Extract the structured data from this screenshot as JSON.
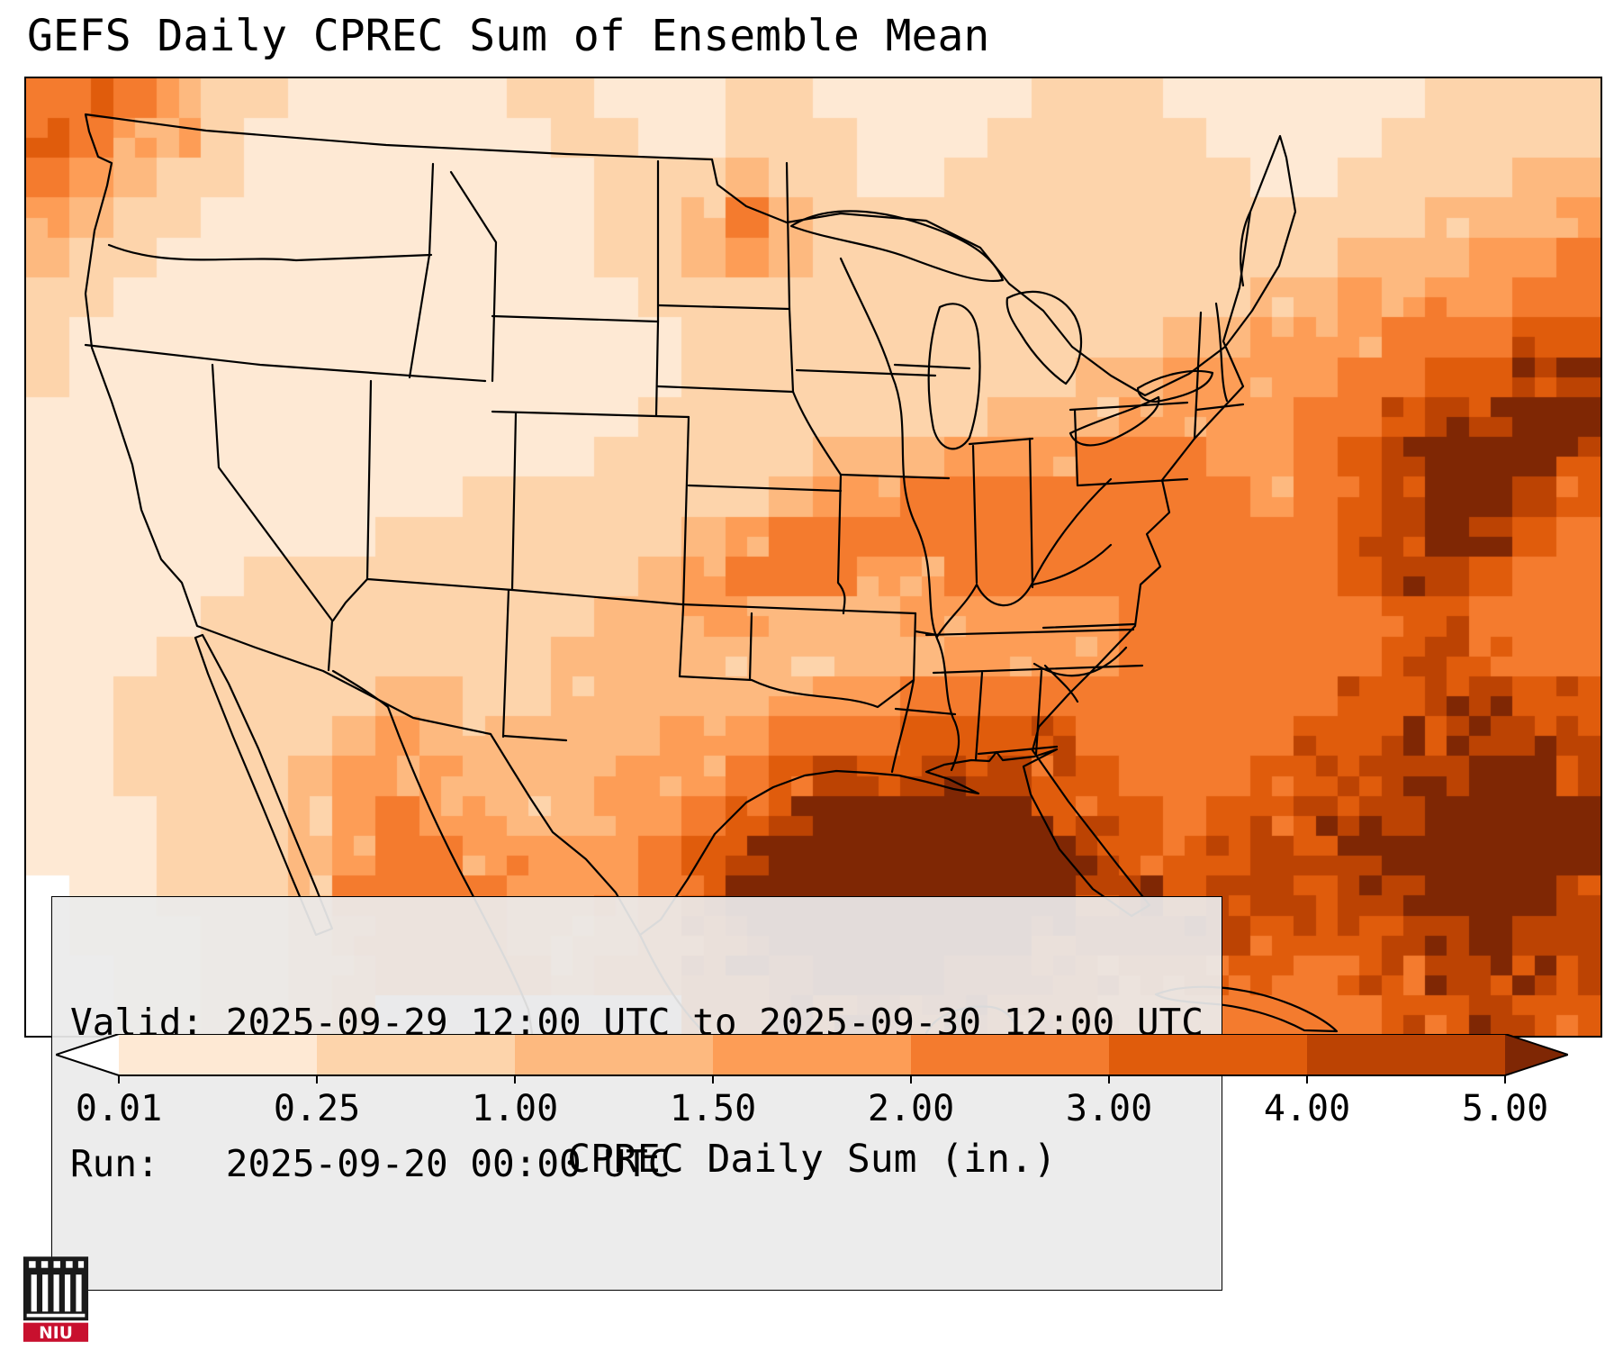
{
  "title": "GEFS Daily CPREC Sum of Ensemble Mean",
  "info_box": {
    "valid_line": "Valid: 2025-09-29 12:00 UTC to 2025-09-30 12:00 UTC",
    "run_line": "Run:   2025-09-20 00:00 UTC"
  },
  "colorbar": {
    "label": "CPREC Daily Sum (in.)",
    "ticks": [
      "0.01",
      "0.25",
      "1.00",
      "1.50",
      "2.00",
      "3.00",
      "4.00",
      "5.00"
    ],
    "segment_colors": [
      "#fee9d4",
      "#fdd4ab",
      "#fdb97f",
      "#fd9d56",
      "#f47b2e",
      "#e05c0c",
      "#bc4303"
    ],
    "under_color": "#ffffff",
    "over_color": "#7f2704",
    "outline_color": "#000000"
  },
  "logo": {
    "name": "NIU",
    "text": "NIU",
    "banner_color": "#c8102e",
    "shield_color": "#1a1a1a"
  },
  "chart_data": {
    "type": "heatmap",
    "title": "GEFS Daily CPREC Sum of Ensemble Mean",
    "variable": "CPREC Daily Sum",
    "units": "in.",
    "region": "Continental United States with state boundaries",
    "valid": "2025-09-29 12:00 UTC to 2025-09-30 12:00 UTC",
    "run": "2025-09-20 00:00 UTC",
    "levels": [
      0.01,
      0.25,
      1.0,
      1.5,
      2.0,
      3.0,
      4.0,
      5.0
    ],
    "palette": {
      "under": "#ffffff",
      "bins": [
        "#fee9d4",
        "#fdd4ab",
        "#fdb97f",
        "#fd9d56",
        "#f47b2e",
        "#e05c0c",
        "#bc4303"
      ],
      "over": "#7f2704",
      "water_nodata": "#dde5ec"
    },
    "grid": {
      "cols": 36,
      "rows": 24,
      "note": "precip inches; -1 = no-data water",
      "values": [
        [
          2.5,
          3.5,
          2.5,
          1.7,
          0.5,
          0.5,
          0.1,
          0.1,
          0.1,
          0.1,
          0.1,
          0.5,
          0.5,
          0.1,
          0.1,
          0.1,
          0.5,
          0.5,
          0.1,
          0.1,
          0.1,
          0.1,
          0.1,
          0.5,
          0.5,
          0.5,
          0.1,
          0.1,
          0.1,
          0.1,
          0.1,
          0.1,
          0.5,
          0.5,
          0.5,
          0.5
        ],
        [
          3.5,
          2.5,
          1.7,
          1.7,
          0.5,
          0.1,
          0.1,
          0.1,
          0.1,
          0.1,
          0.1,
          0.1,
          0.5,
          0.5,
          0.1,
          0.1,
          0.5,
          0.5,
          0.5,
          0.1,
          0.1,
          0.1,
          0.5,
          0.5,
          0.5,
          0.5,
          0.5,
          0.1,
          0.1,
          0.1,
          0.1,
          0.5,
          0.5,
          0.5,
          0.5,
          0.5
        ],
        [
          2.5,
          1.7,
          1.2,
          0.5,
          0.5,
          0.1,
          0.1,
          0.1,
          0.1,
          0.1,
          0.1,
          0.1,
          0.1,
          0.5,
          0.5,
          0.5,
          1.2,
          0.5,
          0.5,
          0.1,
          0.1,
          0.5,
          0.5,
          0.5,
          0.5,
          0.5,
          0.5,
          0.5,
          0.1,
          0.1,
          0.5,
          0.5,
          0.5,
          0.5,
          1.2,
          1.2
        ],
        [
          1.7,
          1.2,
          0.5,
          0.5,
          0.1,
          0.1,
          0.1,
          0.1,
          0.1,
          0.1,
          0.1,
          0.1,
          0.1,
          0.5,
          0.5,
          1.2,
          2.5,
          1.2,
          0.5,
          0.5,
          0.5,
          0.5,
          0.5,
          0.5,
          0.5,
          0.5,
          0.5,
          0.5,
          0.5,
          0.5,
          0.5,
          0.5,
          1.2,
          1.2,
          1.2,
          1.7
        ],
        [
          1.2,
          0.5,
          0.5,
          0.1,
          0.1,
          0.1,
          0.1,
          0.1,
          0.1,
          0.1,
          0.1,
          0.1,
          0.1,
          0.5,
          0.5,
          1.2,
          1.7,
          1.2,
          0.5,
          0.5,
          0.5,
          0.5,
          0.5,
          0.5,
          0.5,
          0.5,
          0.5,
          0.5,
          0.5,
          0.5,
          1.2,
          1.2,
          1.2,
          1.7,
          1.7,
          2.5
        ],
        [
          0.5,
          0.5,
          0.1,
          0.1,
          0.1,
          0.1,
          0.1,
          0.1,
          0.1,
          0.1,
          0.1,
          0.1,
          0.1,
          0.1,
          0.5,
          0.5,
          0.5,
          0.5,
          0.5,
          0.5,
          0.5,
          0.5,
          0.5,
          0.5,
          0.5,
          0.5,
          0.5,
          0.5,
          1.2,
          1.2,
          1.7,
          1.7,
          1.7,
          1.7,
          2.5,
          2.5
        ],
        [
          0.5,
          0.1,
          0.1,
          0.1,
          0.1,
          0.1,
          0.1,
          0.1,
          0.1,
          0.1,
          0.1,
          0.1,
          0.1,
          0.1,
          0.1,
          0.5,
          0.5,
          0.5,
          0.5,
          0.5,
          0.5,
          0.5,
          0.5,
          0.5,
          0.5,
          0.5,
          1.2,
          1.2,
          1.7,
          1.7,
          1.7,
          2.5,
          2.5,
          2.5,
          3.5,
          3.5
        ],
        [
          0.5,
          0.1,
          0.1,
          0.1,
          0.1,
          0.1,
          0.1,
          0.1,
          0.1,
          0.1,
          0.1,
          0.1,
          0.1,
          0.1,
          0.1,
          0.5,
          0.5,
          0.5,
          0.5,
          0.5,
          0.5,
          0.5,
          0.5,
          0.5,
          1.2,
          1.2,
          1.7,
          1.7,
          1.7,
          1.7,
          2.5,
          2.5,
          3.5,
          3.5,
          4.5,
          4.5
        ],
        [
          0.1,
          0.1,
          0.1,
          0.1,
          0.1,
          0.1,
          0.1,
          0.1,
          0.1,
          0.1,
          0.1,
          0.1,
          0.1,
          0.1,
          0.5,
          0.5,
          0.5,
          0.5,
          0.5,
          0.5,
          0.5,
          0.5,
          1.2,
          1.2,
          1.2,
          1.7,
          1.7,
          1.7,
          1.7,
          2.5,
          2.5,
          3.5,
          4.5,
          4.5,
          5.5,
          5.5
        ],
        [
          0.1,
          0.1,
          0.1,
          0.1,
          0.1,
          0.1,
          0.1,
          0.1,
          0.1,
          0.1,
          0.1,
          0.1,
          0.1,
          0.5,
          0.5,
          0.5,
          0.5,
          0.5,
          1.2,
          1.2,
          1.2,
          1.7,
          1.7,
          1.7,
          2.5,
          2.5,
          2.5,
          1.7,
          1.7,
          2.5,
          3.5,
          4.5,
          5.5,
          5.5,
          5.5,
          4.5
        ],
        [
          0.1,
          0.1,
          0.1,
          0.1,
          0.1,
          0.1,
          0.1,
          0.1,
          0.1,
          0.1,
          0.5,
          0.5,
          0.5,
          0.5,
          0.5,
          0.5,
          0.5,
          1.2,
          1.7,
          1.7,
          2.5,
          2.5,
          2.5,
          2.5,
          2.5,
          2.5,
          2.5,
          2.5,
          1.7,
          2.5,
          3.5,
          4.5,
          5.5,
          5.5,
          4.5,
          3.5
        ],
        [
          0.1,
          0.1,
          0.1,
          0.1,
          0.1,
          0.1,
          0.1,
          0.1,
          0.5,
          0.5,
          0.5,
          0.5,
          0.5,
          0.5,
          0.5,
          1.2,
          1.7,
          2.5,
          2.5,
          2.5,
          2.5,
          2.5,
          2.5,
          2.5,
          2.5,
          2.5,
          2.5,
          2.5,
          2.5,
          2.5,
          3.5,
          4.5,
          5.5,
          4.5,
          3.5,
          2.5
        ],
        [
          0.1,
          0.1,
          0.1,
          0.1,
          0.1,
          0.5,
          0.5,
          0.5,
          0.5,
          0.5,
          0.5,
          0.5,
          0.5,
          0.5,
          1.2,
          1.7,
          2.5,
          2.5,
          2.5,
          1.7,
          1.7,
          2.5,
          2.5,
          2.5,
          2.5,
          2.5,
          2.5,
          2.5,
          2.5,
          2.5,
          3.5,
          4.5,
          4.5,
          3.5,
          2.5,
          2.5
        ],
        [
          0.1,
          0.1,
          0.1,
          0.1,
          0.5,
          0.5,
          0.5,
          0.5,
          0.5,
          0.5,
          0.5,
          0.5,
          0.5,
          1.2,
          1.2,
          1.7,
          1.7,
          1.2,
          1.2,
          1.2,
          1.7,
          1.7,
          1.7,
          1.7,
          1.7,
          2.5,
          2.5,
          2.5,
          2.5,
          2.5,
          2.5,
          3.5,
          3.5,
          2.5,
          2.5,
          2.5
        ],
        [
          0.1,
          0.1,
          0.1,
          0.5,
          0.5,
          0.5,
          0.5,
          0.5,
          0.5,
          0.5,
          0.5,
          0.5,
          1.2,
          1.2,
          1.2,
          1.2,
          1.2,
          1.2,
          1.2,
          1.2,
          1.2,
          1.7,
          1.7,
          1.7,
          1.7,
          2.5,
          2.5,
          2.5,
          2.5,
          2.5,
          2.5,
          3.5,
          4.5,
          3.5,
          2.5,
          2.5
        ],
        [
          0.1,
          0.1,
          0.5,
          0.5,
          0.5,
          0.5,
          0.5,
          0.5,
          1.2,
          1.2,
          0.5,
          0.5,
          1.2,
          1.2,
          1.2,
          1.2,
          1.2,
          1.7,
          1.7,
          1.7,
          2.5,
          2.5,
          2.5,
          2.5,
          2.5,
          2.5,
          2.5,
          2.5,
          2.5,
          2.5,
          3.5,
          3.5,
          4.5,
          4.5,
          3.5,
          3.5
        ],
        [
          0.1,
          0.1,
          0.5,
          0.5,
          0.5,
          0.5,
          0.5,
          1.2,
          1.7,
          1.2,
          1.2,
          1.2,
          1.2,
          1.2,
          1.7,
          1.7,
          1.7,
          2.5,
          2.5,
          2.5,
          3.5,
          3.5,
          3.5,
          3.5,
          2.5,
          2.5,
          2.5,
          2.5,
          2.5,
          3.5,
          3.5,
          4.5,
          4.5,
          4.5,
          4.5,
          4.5
        ],
        [
          0.1,
          0.1,
          0.5,
          0.5,
          0.5,
          0.5,
          1.2,
          1.7,
          1.7,
          1.7,
          1.2,
          1.2,
          1.2,
          1.7,
          1.7,
          1.7,
          2.5,
          3.5,
          4.5,
          4.5,
          4.5,
          4.5,
          4.5,
          3.5,
          3.5,
          2.5,
          2.5,
          2.5,
          3.5,
          3.5,
          4.5,
          4.5,
          4.5,
          5.5,
          5.5,
          4.5
        ],
        [
          0.1,
          0.1,
          0.1,
          0.5,
          0.5,
          0.5,
          1.2,
          1.7,
          2.5,
          1.7,
          1.7,
          1.2,
          1.2,
          1.7,
          1.7,
          2.5,
          3.5,
          4.5,
          5.5,
          5.5,
          5.5,
          5.5,
          5.5,
          4.5,
          3.5,
          3.5,
          2.5,
          3.5,
          3.5,
          4.5,
          4.5,
          4.5,
          5.5,
          5.5,
          5.5,
          5.5
        ],
        [
          0.1,
          0.1,
          0.1,
          0.5,
          0.5,
          0.5,
          1.2,
          1.7,
          2.5,
          2.5,
          1.7,
          1.7,
          1.7,
          1.7,
          2.5,
          3.5,
          4.5,
          5.5,
          5.5,
          5.5,
          5.5,
          5.5,
          5.5,
          5.5,
          4.5,
          3.5,
          3.5,
          3.5,
          4.5,
          4.5,
          4.5,
          5.5,
          5.5,
          5.5,
          5.5,
          5.5
        ],
        [
          0.0,
          0.1,
          0.1,
          0.5,
          0.5,
          0.5,
          1.2,
          2.5,
          2.5,
          2.5,
          2.5,
          1.7,
          1.7,
          1.7,
          2.5,
          3.5,
          5.5,
          5.5,
          5.5,
          5.5,
          5.5,
          5.5,
          5.5,
          5.5,
          4.5,
          4.5,
          3.5,
          4.5,
          4.5,
          3.5,
          4.5,
          4.5,
          5.5,
          5.5,
          5.5,
          4.5
        ],
        [
          0.0,
          0.1,
          0.1,
          0.1,
          0.5,
          0.5,
          1.2,
          1.7,
          2.5,
          2.5,
          2.5,
          1.7,
          1.7,
          1.7,
          2.5,
          3.5,
          4.5,
          5.5,
          5.5,
          5.5,
          5.5,
          5.5,
          5.5,
          4.5,
          4.5,
          4.5,
          4.5,
          4.5,
          3.5,
          3.5,
          3.5,
          4.5,
          4.5,
          5.5,
          4.5,
          4.5
        ],
        [
          0.0,
          0.0,
          0.1,
          0.1,
          0.5,
          0.5,
          1.2,
          1.7,
          2.5,
          2.5,
          2.5,
          2.5,
          1.7,
          2.5,
          2.5,
          3.5,
          4.5,
          4.5,
          5.5,
          5.5,
          5.5,
          4.5,
          4.5,
          4.5,
          3.5,
          3.5,
          3.5,
          3.5,
          3.5,
          2.5,
          3.5,
          3.5,
          4.5,
          4.5,
          4.5,
          3.5
        ],
        [
          0.0,
          0.0,
          0.1,
          0.1,
          0.5,
          0.5,
          1.2,
          1.7,
          -1,
          -1,
          -1,
          -1,
          -1,
          -1,
          -1,
          3.5,
          3.5,
          4.5,
          4.5,
          4.5,
          4.5,
          4.5,
          3.5,
          3.5,
          3.5,
          2.5,
          2.5,
          2.5,
          2.5,
          2.5,
          2.5,
          3.5,
          3.5,
          4.5,
          3.5,
          3.5
        ]
      ]
    }
  }
}
